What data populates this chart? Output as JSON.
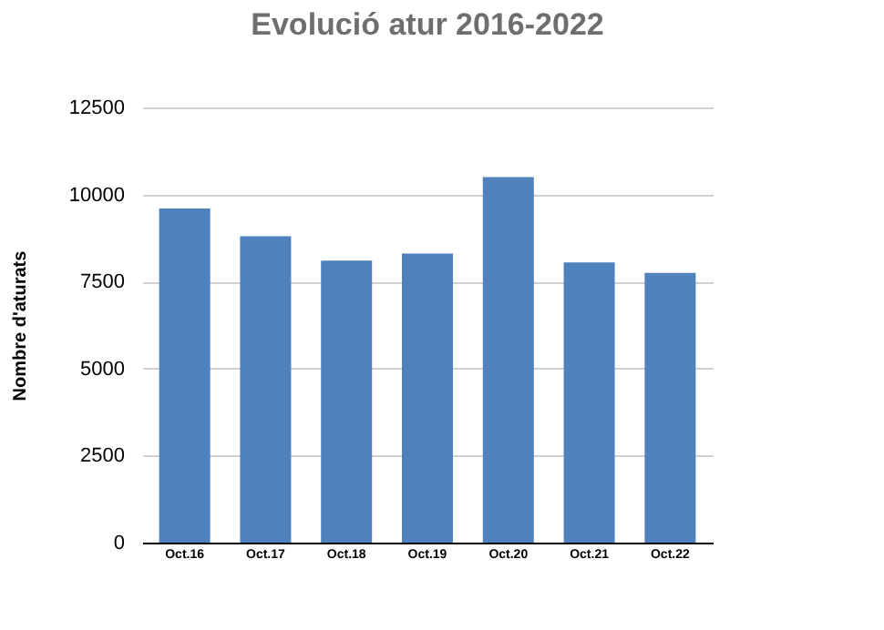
{
  "chart_data": {
    "type": "bar",
    "title": "Evolució atur 2016-2022",
    "ylabel": "Nombre d'aturats",
    "categories": [
      "Oct.16",
      "Oct.17",
      "Oct.18",
      "Oct.19",
      "Oct.20",
      "Oct.21",
      "Oct.22"
    ],
    "values": [
      9600,
      8800,
      8100,
      8300,
      10500,
      8050,
      7750
    ],
    "color": "#4f81bd",
    "ylim": [
      0,
      12500
    ],
    "yticks": [
      0,
      2500,
      5000,
      7500,
      10000,
      12500
    ],
    "grid": "y"
  }
}
